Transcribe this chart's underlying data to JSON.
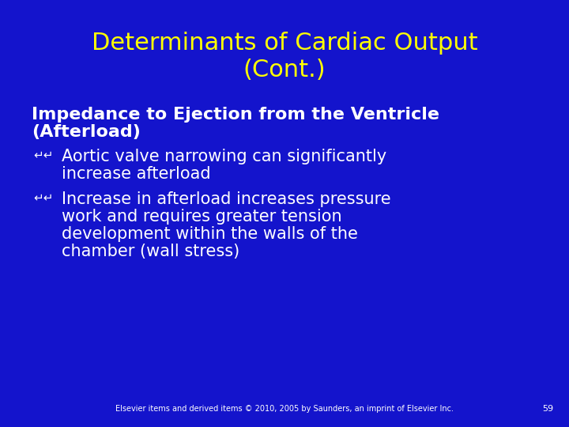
{
  "background_color": "#1414cc",
  "title_line1": "Determinants of Cardiac Output",
  "title_line2": "(Cont.)",
  "title_color": "#ffff00",
  "title_fontsize": 22,
  "title_fontstyle": "normal",
  "heading_line1": "Impedance to Ejection from the Ventricle",
  "heading_line2": "(Afterload)",
  "heading_color": "#ffffff",
  "heading_fontsize": 16,
  "bullet_color": "#ffffff",
  "bullet_fontsize": 15,
  "bullet1_line1": "Aortic valve narrowing can significantly",
  "bullet1_line2": "increase afterload",
  "bullet2_line1": "Increase in afterload increases pressure",
  "bullet2_line2": "work and requires greater tension",
  "bullet2_line3": "development within the walls of the",
  "bullet2_line4": "chamber (wall stress)",
  "footer_text": "Elsevier items and derived items © 2010, 2005 by Saunders, an imprint of Elsevier Inc.",
  "footer_color": "#ffffff",
  "footer_fontsize": 7,
  "page_number": "59",
  "page_number_color": "#ffffff",
  "page_number_fontsize": 8,
  "bullet_symbol": "⇶"
}
